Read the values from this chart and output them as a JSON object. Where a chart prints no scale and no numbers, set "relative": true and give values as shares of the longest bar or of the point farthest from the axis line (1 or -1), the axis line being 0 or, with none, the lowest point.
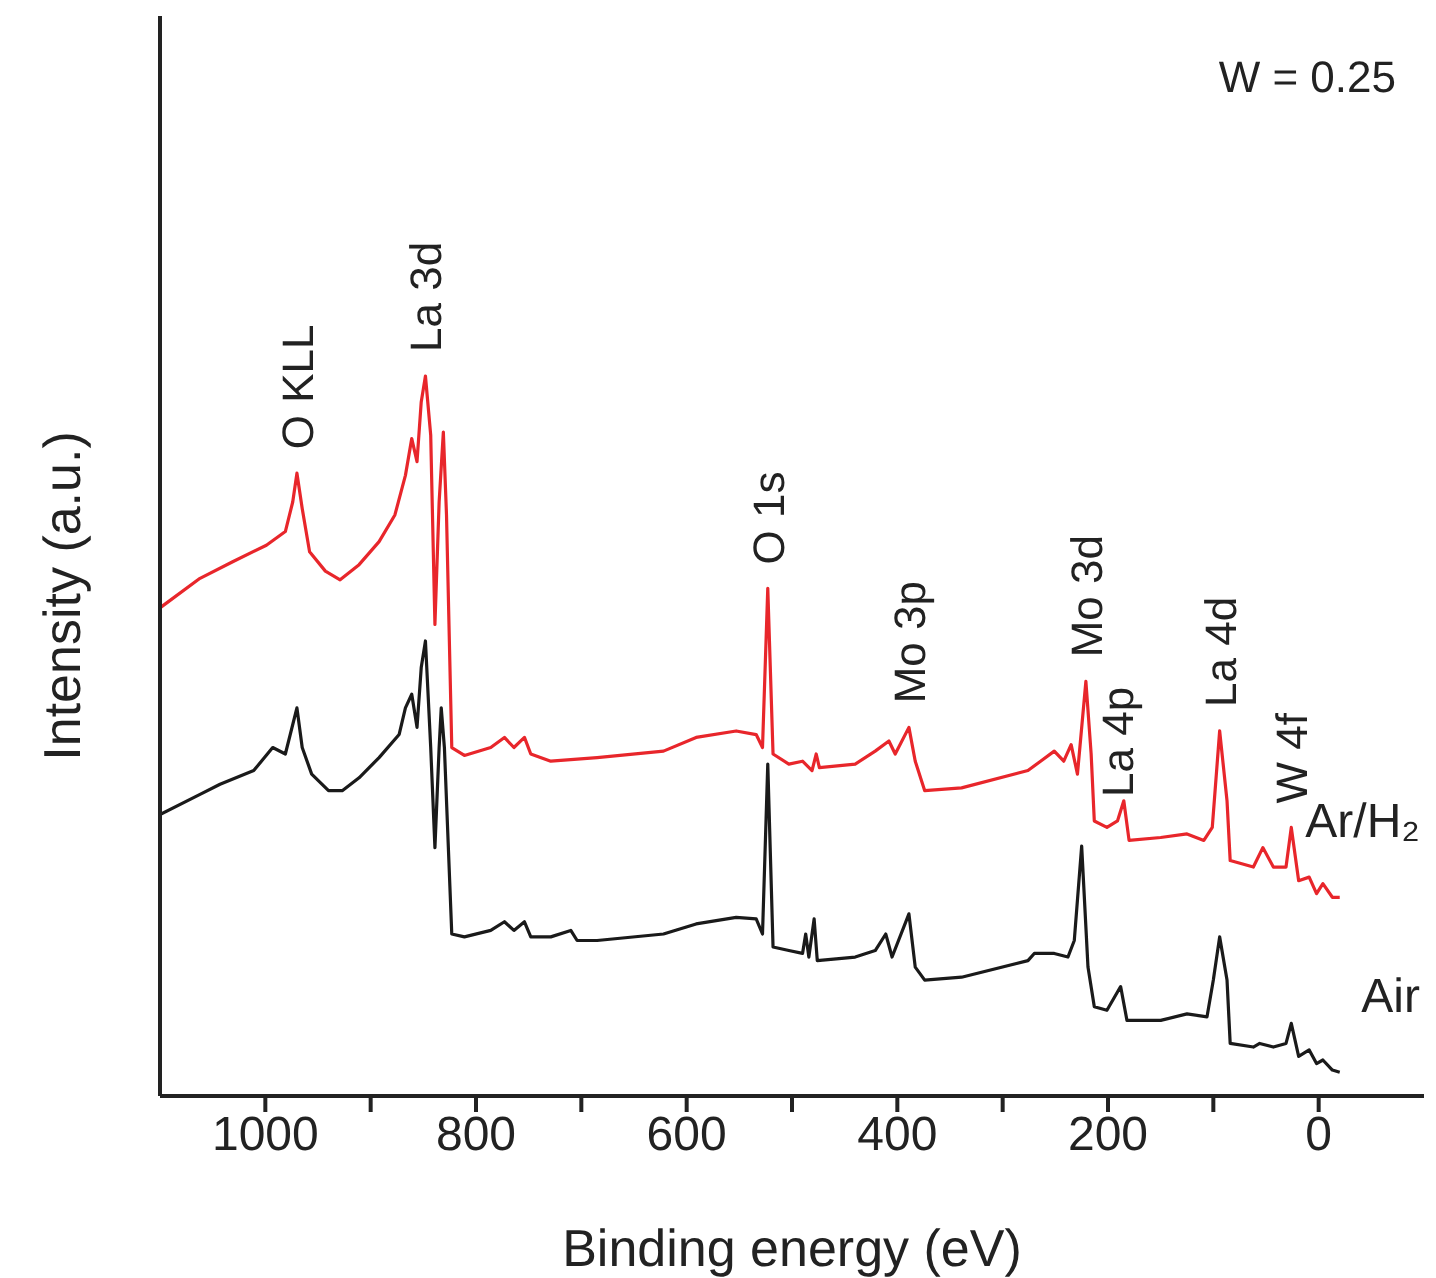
{
  "chart_data": {
    "type": "line",
    "xlabel": "Binding energy (eV)",
    "ylabel": "Intensity (a.u.)",
    "relative": true,
    "xlim": [
      1100,
      -100
    ],
    "xticks": [
      1000,
      {
        "value": 900,
        "label": null
      },
      800,
      {
        "value": 700,
        "label": null
      },
      600,
      {
        "value": 500,
        "label": null
      },
      400,
      {
        "value": 300,
        "label": null
      },
      200,
      {
        "value": 100,
        "label": null
      },
      0
    ],
    "annotations": [
      "W = 0.25",
      {
        "text": "O KLL",
        "x": 970,
        "y": 0.865
      },
      {
        "text": "La 3d",
        "x": 848,
        "y": 1.0
      },
      {
        "text": "O 1s",
        "x": 523,
        "y": 0.705
      },
      {
        "text": "Mo 3p",
        "x": 389,
        "y": 0.512
      },
      {
        "text": "Mo 3d",
        "x": 221,
        "y": 0.576
      },
      {
        "text": "La 4p",
        "x": 191,
        "y": 0.382
      },
      {
        "text": "La 4d",
        "x": 94,
        "y": 0.507
      },
      {
        "text": "W 4f",
        "x": 26,
        "y": 0.373
      }
    ],
    "series": [
      {
        "name": "Ar/H₂",
        "color": "#e8262b",
        "x": [
          1100,
          1062,
          1031,
          999,
          981,
          974,
          970,
          965,
          958,
          943,
          929,
          911,
          892,
          877,
          867,
          861,
          856,
          852,
          848,
          843,
          839,
          835,
          831,
          828,
          823,
          811,
          786,
          773,
          764,
          754,
          748,
          729,
          685,
          622,
          591,
          553,
          534,
          528,
          523,
          518,
          503,
          490,
          481,
          477,
          474,
          440,
          421,
          408,
          402,
          389,
          383,
          374,
          339,
          276,
          264,
          251,
          242,
          235,
          229,
          221,
          216,
          213,
          201,
          191,
          185,
          180,
          150,
          125,
          109,
          101,
          94,
          87,
          84,
          62,
          53,
          43,
          31,
          26,
          19,
          9,
          2,
          -4,
          -13,
          -20
        ],
        "values": [
          0.678,
          0.719,
          0.742,
          0.765,
          0.784,
          0.825,
          0.865,
          0.816,
          0.756,
          0.729,
          0.717,
          0.738,
          0.77,
          0.807,
          0.862,
          0.913,
          0.881,
          0.964,
          1.0,
          0.918,
          0.655,
          0.825,
          0.922,
          0.807,
          0.484,
          0.473,
          0.484,
          0.498,
          0.484,
          0.498,
          0.475,
          0.465,
          0.47,
          0.479,
          0.498,
          0.507,
          0.502,
          0.484,
          0.705,
          0.475,
          0.461,
          0.465,
          0.452,
          0.475,
          0.456,
          0.461,
          0.479,
          0.493,
          0.475,
          0.512,
          0.465,
          0.424,
          0.428,
          0.452,
          0.465,
          0.479,
          0.465,
          0.488,
          0.447,
          0.576,
          0.475,
          0.382,
          0.373,
          0.382,
          0.41,
          0.355,
          0.359,
          0.364,
          0.355,
          0.373,
          0.507,
          0.41,
          0.327,
          0.318,
          0.345,
          0.318,
          0.318,
          0.373,
          0.299,
          0.304,
          0.281,
          0.295,
          0.276,
          0.276
        ]
      },
      {
        "name": "Air",
        "color": "#1a1a1a",
        "x": [
          1100,
          1062,
          1043,
          1011,
          993,
          981,
          970,
          965,
          956,
          940,
          927,
          911,
          892,
          873,
          867,
          861,
          856,
          852,
          848,
          843,
          839,
          835,
          833,
          830,
          823,
          811,
          786,
          773,
          764,
          754,
          748,
          729,
          710,
          704,
          685,
          622,
          591,
          553,
          534,
          528,
          523,
          518,
          503,
          490,
          487,
          484,
          479,
          476,
          440,
          421,
          411,
          405,
          389,
          383,
          374,
          339,
          276,
          270,
          251,
          238,
          232,
          225,
          219,
          213,
          201,
          188,
          182,
          150,
          125,
          106,
          100,
          94,
          87,
          84,
          62,
          56,
          43,
          31,
          26,
          19,
          9,
          2,
          -4,
          -13,
          -20
        ],
        "values": [
          0.391,
          0.419,
          0.433,
          0.452,
          0.484,
          0.475,
          0.539,
          0.484,
          0.447,
          0.424,
          0.424,
          0.442,
          0.47,
          0.502,
          0.539,
          0.558,
          0.512,
          0.595,
          0.632,
          0.484,
          0.345,
          0.484,
          0.539,
          0.484,
          0.225,
          0.221,
          0.23,
          0.242,
          0.23,
          0.242,
          0.221,
          0.221,
          0.23,
          0.216,
          0.216,
          0.225,
          0.239,
          0.248,
          0.246,
          0.225,
          0.461,
          0.207,
          0.202,
          0.198,
          0.225,
          0.193,
          0.246,
          0.188,
          0.193,
          0.202,
          0.225,
          0.193,
          0.253,
          0.179,
          0.161,
          0.165,
          0.188,
          0.198,
          0.198,
          0.193,
          0.216,
          0.347,
          0.179,
          0.124,
          0.119,
          0.152,
          0.105,
          0.105,
          0.114,
          0.11,
          0.161,
          0.221,
          0.161,
          0.073,
          0.068,
          0.073,
          0.068,
          0.073,
          0.101,
          0.055,
          0.064,
          0.045,
          0.05,
          0.036,
          0.033
        ]
      }
    ]
  }
}
